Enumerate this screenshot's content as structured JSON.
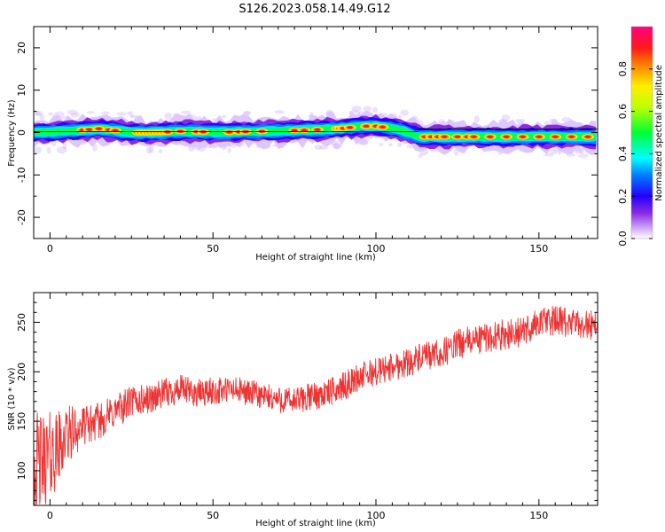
{
  "figure": {
    "title": "S126.2023.058.14.49.G12"
  },
  "chart_data": [
    {
      "type": "heatmap",
      "panel": "spectrogram",
      "title": "S126.2023.058.14.49.G12",
      "xlabel": "Height of straight line (km)",
      "ylabel": "Frequency (Hz)",
      "xlim": [
        -5,
        168
      ],
      "ylim": [
        -25,
        25
      ],
      "x_ticks": [
        0,
        50,
        100,
        150
      ],
      "y_ticks": [
        -20,
        -10,
        0,
        10,
        20
      ],
      "y_tick_labels": [
        "-20",
        "-10",
        "0",
        "10",
        "20"
      ],
      "grid": false,
      "colorbar": {
        "label": "Normalized spectral amplitude",
        "range": [
          0,
          1
        ],
        "ticks": [
          0.0,
          0.2,
          0.4,
          0.6,
          0.8
        ],
        "tick_labels": [
          "0.0",
          "0.2",
          "0.4",
          "0.6",
          "0.8"
        ],
        "colormap": "gist_rainbow reversed (purple → blue → cyan → green → yellow → orange → red → magenta)"
      },
      "ridge": {
        "description": "dominant frequency track in Hz vs height in km",
        "x": [
          -5,
          0,
          5,
          10,
          15,
          20,
          25,
          30,
          35,
          40,
          45,
          50,
          55,
          60,
          65,
          70,
          75,
          80,
          85,
          90,
          95,
          100,
          105,
          110,
          113,
          120,
          130,
          140,
          150,
          160,
          168
        ],
        "y": [
          0.0,
          0.2,
          0.3,
          0.6,
          0.9,
          0.5,
          0.0,
          0.0,
          0.1,
          0.3,
          0.2,
          0.1,
          0.1,
          0.2,
          0.3,
          0.4,
          0.5,
          0.6,
          0.8,
          1.0,
          1.5,
          1.5,
          1.0,
          0.0,
          -1.0,
          -1.0,
          -1.0,
          -1.0,
          -1.0,
          -1.0,
          -1.0
        ]
      },
      "hot_spots_x": [
        10,
        12,
        15,
        18,
        20,
        27,
        28,
        29,
        30,
        31,
        32,
        33,
        34,
        35,
        36,
        40,
        45,
        47,
        55,
        58,
        60,
        65,
        75,
        78,
        82,
        88,
        89,
        90,
        92,
        97,
        100,
        102,
        115,
        117,
        119,
        121,
        125,
        128,
        130,
        135,
        140,
        145,
        150,
        155,
        160,
        165
      ],
      "reference_lines": [
        {
          "x_range": [
            -5,
            113
          ],
          "y": 0.2
        },
        {
          "x_range": [
            113,
            168
          ],
          "y": 0.8
        }
      ]
    },
    {
      "type": "line",
      "panel": "snr",
      "xlabel": "Height of straight line (km)",
      "ylabel": "SNR (10 * v/v)",
      "xlim": [
        -5,
        168
      ],
      "ylim": [
        65,
        280
      ],
      "x_ticks": [
        0,
        50,
        100,
        150
      ],
      "y_ticks": [
        100,
        150,
        200,
        250
      ],
      "grid": false,
      "series": [
        {
          "color": "#ee3333",
          "trend": {
            "x": [
              -5,
              -2,
              0,
              2,
              5,
              10,
              15,
              20,
              25,
              30,
              35,
              40,
              45,
              50,
              55,
              60,
              65,
              70,
              75,
              80,
              85,
              90,
              95,
              100,
              105,
              110,
              115,
              120,
              125,
              130,
              135,
              140,
              145,
              150,
              155,
              160,
              165,
              168
            ],
            "y": [
              105,
              110,
              115,
              120,
              135,
              145,
              150,
              160,
              170,
              172,
              178,
              182,
              178,
              180,
              182,
              180,
              175,
              172,
              170,
              175,
              178,
              185,
              195,
              200,
              205,
              210,
              215,
              218,
              228,
              232,
              235,
              238,
              240,
              250,
              252,
              248,
              248,
              248
            ]
          },
          "noise_amplitude": {
            "x": [
              -5,
              0,
              5,
              10,
              30,
              60,
              100,
              140,
              168
            ],
            "y": [
              60,
              50,
              35,
              22,
              17,
              15,
              16,
              17,
              17
            ]
          }
        }
      ]
    }
  ]
}
